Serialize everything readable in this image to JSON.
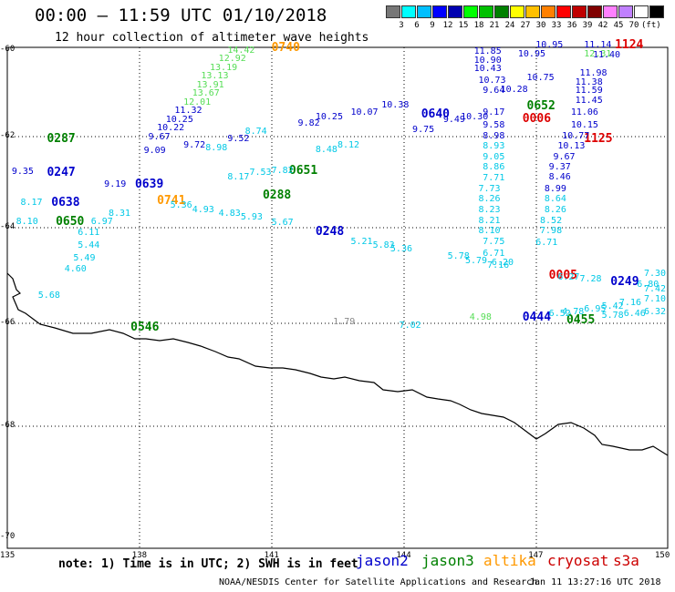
{
  "header": {
    "title": "00:00 – 11:59 UTC 01/10/2018",
    "subtitle": "12 hour collection of altimeter wave heights"
  },
  "colorbar": {
    "colors": [
      "#777777",
      "#00ffff",
      "#00bfff",
      "#0000ff",
      "#0000b0",
      "#00ff00",
      "#00c000",
      "#008000",
      "#ffff00",
      "#ffc000",
      "#ff8000",
      "#ff0000",
      "#c00000",
      "#800000",
      "#ff80ff",
      "#c080ff",
      "#ffffff",
      "#000000"
    ],
    "labels": [
      "3",
      "6",
      "9",
      "12",
      "15",
      "18",
      "21",
      "24",
      "27",
      "30",
      "33",
      "36",
      "39",
      "42",
      "45",
      "70"
    ],
    "unit": "(ft)"
  },
  "axes": {
    "lat_labels": [
      "-60",
      "-62",
      "-64",
      "-66",
      "-68",
      "-70"
    ],
    "lon_labels": [
      "135",
      "138",
      "141",
      "144",
      "147",
      "150"
    ]
  },
  "footer": {
    "note": "note:  1) Time is in UTC;  2) SWH is in feet",
    "credit": "NOAA/NESDIS Center for Satellite Applications and Research",
    "timestamp": "Jan 11 13:27:16 UTC 2018"
  },
  "legend": [
    {
      "name": "jason2",
      "color": "#0000cc"
    },
    {
      "name": "jason3",
      "color": "#008000"
    },
    {
      "name": "altika",
      "color": "#ff9900"
    },
    {
      "name": "cryosat",
      "color": "#cc0000"
    },
    {
      "name": "s3a",
      "color": "#cc0000"
    }
  ],
  "colors": {
    "jason2": "#0000cc",
    "jason3": "#008000",
    "altika": "#ff9900",
    "cryosat": "#dd0000",
    "cyan": "#00c8e6",
    "green": "#55dd55",
    "navy": "#00008b",
    "grey": "#888888"
  },
  "chart_data": {
    "type": "scatter",
    "title": "00:00 – 11:59 UTC 01/10/2018",
    "xlim": [
      135,
      150
    ],
    "ylim": [
      -70,
      -59.5
    ],
    "time_labels": [
      {
        "text": "0740",
        "lon": 141.0,
        "lat": -59.95,
        "color": "altika"
      },
      {
        "text": "1124",
        "lon": 148.8,
        "lat": -59.9,
        "color": "cryosat"
      },
      {
        "text": "0006",
        "lon": 146.7,
        "lat": -61.6,
        "color": "cryosat"
      },
      {
        "text": "0652",
        "lon": 146.8,
        "lat": -61.3,
        "color": "jason3"
      },
      {
        "text": "0640",
        "lon": 144.4,
        "lat": -61.5,
        "color": "jason2"
      },
      {
        "text": "1125",
        "lon": 148.1,
        "lat": -62.05,
        "color": "cryosat"
      },
      {
        "text": "0287",
        "lon": 135.9,
        "lat": -62.05,
        "color": "jason3"
      },
      {
        "text": "0247",
        "lon": 135.9,
        "lat": -62.8,
        "color": "jason2"
      },
      {
        "text": "0651",
        "lon": 141.4,
        "lat": -62.75,
        "color": "jason3"
      },
      {
        "text": "0639",
        "lon": 137.9,
        "lat": -63.05,
        "color": "jason2"
      },
      {
        "text": "0638",
        "lon": 136.0,
        "lat": -63.45,
        "color": "jason2"
      },
      {
        "text": "0741",
        "lon": 138.4,
        "lat": -63.42,
        "color": "altika"
      },
      {
        "text": "0288",
        "lon": 140.8,
        "lat": -63.3,
        "color": "jason3"
      },
      {
        "text": "0650",
        "lon": 136.1,
        "lat": -63.88,
        "color": "jason3"
      },
      {
        "text": "0248",
        "lon": 142.0,
        "lat": -64.1,
        "color": "jason2"
      },
      {
        "text": "0005",
        "lon": 147.3,
        "lat": -65.0,
        "color": "cryosat"
      },
      {
        "text": "0249",
        "lon": 148.7,
        "lat": -65.15,
        "color": "jason2"
      },
      {
        "text": "0444",
        "lon": 146.7,
        "lat": -65.88,
        "color": "jason2"
      },
      {
        "text": "0455",
        "lon": 147.7,
        "lat": -65.95,
        "color": "jason3"
      },
      {
        "text": "0546",
        "lon": 137.8,
        "lat": -66.08,
        "color": "jason3"
      }
    ],
    "swh_labels": [
      {
        "text": "14.42",
        "lon": 140.0,
        "lat": -60.02,
        "color": "green"
      },
      {
        "text": "12.92",
        "lon": 139.8,
        "lat": -60.22,
        "color": "green"
      },
      {
        "text": "13.19",
        "lon": 139.6,
        "lat": -60.42,
        "color": "green"
      },
      {
        "text": "13.13",
        "lon": 139.4,
        "lat": -60.62,
        "color": "green"
      },
      {
        "text": "13.91",
        "lon": 139.3,
        "lat": -60.82,
        "color": "green"
      },
      {
        "text": "13.67",
        "lon": 139.2,
        "lat": -61.02,
        "color": "green"
      },
      {
        "text": "12.01",
        "lon": 139.0,
        "lat": -61.22,
        "color": "green"
      },
      {
        "text": "11.32",
        "lon": 138.8,
        "lat": -61.42,
        "color": "jason2"
      },
      {
        "text": "10.25",
        "lon": 138.6,
        "lat": -61.62,
        "color": "jason2"
      },
      {
        "text": "10.22",
        "lon": 138.4,
        "lat": -61.82,
        "color": "jason2"
      },
      {
        "text": "9.67",
        "lon": 138.2,
        "lat": -62.02,
        "color": "jason2"
      },
      {
        "text": "9.09",
        "lon": 138.1,
        "lat": -62.32,
        "color": "jason2"
      },
      {
        "text": "9.72",
        "lon": 139.0,
        "lat": -62.2,
        "color": "jason2"
      },
      {
        "text": "9.52",
        "lon": 140.0,
        "lat": -62.05,
        "color": "jason2"
      },
      {
        "text": "8.74",
        "lon": 140.4,
        "lat": -61.9,
        "color": "cyan"
      },
      {
        "text": "9.82",
        "lon": 141.6,
        "lat": -61.7,
        "color": "jason2"
      },
      {
        "text": "10.25",
        "lon": 142.0,
        "lat": -61.55,
        "color": "jason2"
      },
      {
        "text": "10.07",
        "lon": 142.8,
        "lat": -61.45,
        "color": "jason2"
      },
      {
        "text": "10.38",
        "lon": 143.5,
        "lat": -61.28,
        "color": "jason2"
      },
      {
        "text": "9.75",
        "lon": 144.2,
        "lat": -61.85,
        "color": "jason2"
      },
      {
        "text": "9.49",
        "lon": 144.9,
        "lat": -61.62,
        "color": "jason2"
      },
      {
        "text": "10.30",
        "lon": 145.3,
        "lat": -61.55,
        "color": "jason2"
      },
      {
        "text": "11.85",
        "lon": 145.6,
        "lat": -60.05,
        "color": "jason2"
      },
      {
        "text": "10.90",
        "lon": 145.6,
        "lat": -60.25,
        "color": "jason2"
      },
      {
        "text": "10.43",
        "lon": 145.6,
        "lat": -60.45,
        "color": "jason2"
      },
      {
        "text": "10.73",
        "lon": 145.7,
        "lat": -60.72,
        "color": "jason2"
      },
      {
        "text": "9.64",
        "lon": 145.8,
        "lat": -60.95,
        "color": "jason2"
      },
      {
        "text": "9.17",
        "lon": 145.8,
        "lat": -61.45,
        "color": "jason2"
      },
      {
        "text": "9.58",
        "lon": 145.8,
        "lat": -61.75,
        "color": "jason2"
      },
      {
        "text": "8.98",
        "lon": 145.8,
        "lat": -62.0,
        "color": "jason2"
      },
      {
        "text": "8.93",
        "lon": 145.8,
        "lat": -62.22,
        "color": "cyan"
      },
      {
        "text": "9.05",
        "lon": 145.8,
        "lat": -62.45,
        "color": "cyan"
      },
      {
        "text": "8.86",
        "lon": 145.8,
        "lat": -62.68,
        "color": "cyan"
      },
      {
        "text": "7.71",
        "lon": 145.8,
        "lat": -62.92,
        "color": "cyan"
      },
      {
        "text": "7.73",
        "lon": 145.7,
        "lat": -63.15,
        "color": "cyan"
      },
      {
        "text": "8.26",
        "lon": 145.7,
        "lat": -63.38,
        "color": "cyan"
      },
      {
        "text": "8.23",
        "lon": 145.7,
        "lat": -63.62,
        "color": "cyan"
      },
      {
        "text": "8.21",
        "lon": 145.7,
        "lat": -63.85,
        "color": "cyan"
      },
      {
        "text": "8.10",
        "lon": 145.7,
        "lat": -64.08,
        "color": "cyan"
      },
      {
        "text": "7.75",
        "lon": 145.8,
        "lat": -64.3,
        "color": "cyan"
      },
      {
        "text": "6.71",
        "lon": 145.8,
        "lat": -64.55,
        "color": "cyan"
      },
      {
        "text": "7.16",
        "lon": 145.9,
        "lat": -64.8,
        "color": "cyan"
      },
      {
        "text": "10.95",
        "lon": 147.0,
        "lat": -59.9,
        "color": "jason2"
      },
      {
        "text": "10.95",
        "lon": 146.6,
        "lat": -60.1,
        "color": "jason2"
      },
      {
        "text": "10.75",
        "lon": 146.8,
        "lat": -60.65,
        "color": "jason2"
      },
      {
        "text": "10.28",
        "lon": 146.2,
        "lat": -60.92,
        "color": "jason2"
      },
      {
        "text": "11.14",
        "lon": 148.1,
        "lat": -59.9,
        "color": "jason2"
      },
      {
        "text": "12.31",
        "lon": 148.1,
        "lat": -60.1,
        "color": "green"
      },
      {
        "text": "11.40",
        "lon": 148.3,
        "lat": -60.12,
        "color": "jason2"
      },
      {
        "text": "11.98",
        "lon": 148.0,
        "lat": -60.55,
        "color": "jason2"
      },
      {
        "text": "11.59",
        "lon": 147.9,
        "lat": -60.95,
        "color": "jason2"
      },
      {
        "text": "11.45",
        "lon": 147.9,
        "lat": -61.18,
        "color": "jason2"
      },
      {
        "text": "11.38",
        "lon": 147.9,
        "lat": -60.75,
        "color": "jason2"
      },
      {
        "text": "11.06",
        "lon": 147.8,
        "lat": -61.45,
        "color": "jason2"
      },
      {
        "text": "10.15",
        "lon": 147.8,
        "lat": -61.75,
        "color": "jason2"
      },
      {
        "text": "10.77",
        "lon": 147.6,
        "lat": -62.0,
        "color": "jason2"
      },
      {
        "text": "10.13",
        "lon": 147.5,
        "lat": -62.22,
        "color": "jason2"
      },
      {
        "text": "9.67",
        "lon": 147.4,
        "lat": -62.45,
        "color": "jason2"
      },
      {
        "text": "9.37",
        "lon": 147.3,
        "lat": -62.68,
        "color": "jason2"
      },
      {
        "text": "8.46",
        "lon": 147.3,
        "lat": -62.9,
        "color": "jason2"
      },
      {
        "text": "8.99",
        "lon": 147.2,
        "lat": -63.15,
        "color": "jason2"
      },
      {
        "text": "8.64",
        "lon": 147.2,
        "lat": -63.38,
        "color": "cyan"
      },
      {
        "text": "8.26",
        "lon": 147.2,
        "lat": -63.62,
        "color": "cyan"
      },
      {
        "text": "8.52",
        "lon": 147.1,
        "lat": -63.85,
        "color": "cyan"
      },
      {
        "text": "7.98",
        "lon": 147.1,
        "lat": -64.08,
        "color": "cyan"
      },
      {
        "text": "6.71",
        "lon": 147.0,
        "lat": -64.32,
        "color": "cyan"
      },
      {
        "text": "9.35",
        "lon": 135.1,
        "lat": -62.78,
        "color": "jason2"
      },
      {
        "text": "8.17",
        "lon": 135.3,
        "lat": -63.45,
        "color": "cyan"
      },
      {
        "text": "8.10",
        "lon": 135.2,
        "lat": -63.88,
        "color": "cyan"
      },
      {
        "text": "6.97",
        "lon": 136.9,
        "lat": -63.88,
        "color": "cyan"
      },
      {
        "text": "6.11",
        "lon": 136.6,
        "lat": -64.12,
        "color": "cyan"
      },
      {
        "text": "5.44",
        "lon": 136.6,
        "lat": -64.38,
        "color": "cyan"
      },
      {
        "text": "5.49",
        "lon": 136.5,
        "lat": -64.65,
        "color": "cyan"
      },
      {
        "text": "4.60",
        "lon": 136.3,
        "lat": -64.88,
        "color": "cyan"
      },
      {
        "text": "5.68",
        "lon": 135.7,
        "lat": -65.42,
        "color": "cyan"
      },
      {
        "text": "8.31",
        "lon": 137.3,
        "lat": -63.7,
        "color": "cyan"
      },
      {
        "text": "9.19",
        "lon": 137.2,
        "lat": -63.05,
        "color": "jason2"
      },
      {
        "text": "5.36",
        "lon": 138.7,
        "lat": -63.52,
        "color": "cyan"
      },
      {
        "text": "4.93",
        "lon": 139.2,
        "lat": -63.62,
        "color": "cyan"
      },
      {
        "text": "4.83",
        "lon": 139.8,
        "lat": -63.7,
        "color": "cyan"
      },
      {
        "text": "5.93",
        "lon": 140.3,
        "lat": -63.78,
        "color": "cyan"
      },
      {
        "text": "5.67",
        "lon": 141.0,
        "lat": -63.9,
        "color": "cyan"
      },
      {
        "text": "8.17",
        "lon": 140.0,
        "lat": -62.9,
        "color": "cyan"
      },
      {
        "text": "7.53",
        "lon": 140.5,
        "lat": -62.8,
        "color": "cyan"
      },
      {
        "text": "7.82",
        "lon": 141.0,
        "lat": -62.75,
        "color": "cyan"
      },
      {
        "text": "8.12",
        "lon": 142.5,
        "lat": -62.2,
        "color": "cyan"
      },
      {
        "text": "8.48",
        "lon": 142.0,
        "lat": -62.3,
        "color": "cyan"
      },
      {
        "text": "8.98",
        "lon": 139.5,
        "lat": -62.25,
        "color": "cyan"
      },
      {
        "text": "5.21",
        "lon": 142.8,
        "lat": -64.3,
        "color": "cyan"
      },
      {
        "text": "5.83",
        "lon": 143.3,
        "lat": -64.38,
        "color": "cyan"
      },
      {
        "text": "5.36",
        "lon": 143.7,
        "lat": -64.45,
        "color": "cyan"
      },
      {
        "text": "5.78",
        "lon": 145.0,
        "lat": -64.6,
        "color": "cyan"
      },
      {
        "text": "5.79",
        "lon": 145.4,
        "lat": -64.7,
        "color": "cyan"
      },
      {
        "text": "6.20",
        "lon": 146.0,
        "lat": -64.75,
        "color": "cyan"
      },
      {
        "text": "1.79",
        "lon": 142.4,
        "lat": -65.98,
        "color": "grey"
      },
      {
        "text": "7.02",
        "lon": 143.9,
        "lat": -66.05,
        "color": "cyan"
      },
      {
        "text": "4.98",
        "lon": 145.5,
        "lat": -65.88,
        "color": "green"
      },
      {
        "text": "6.52",
        "lon": 147.3,
        "lat": -65.8,
        "color": "cyan"
      },
      {
        "text": "4.78",
        "lon": 147.6,
        "lat": -65.78,
        "color": "cyan"
      },
      {
        "text": "6.95",
        "lon": 148.1,
        "lat": -65.72,
        "color": "cyan"
      },
      {
        "text": "5.42",
        "lon": 148.5,
        "lat": -65.65,
        "color": "cyan"
      },
      {
        "text": "7.16",
        "lon": 148.9,
        "lat": -65.58,
        "color": "cyan"
      },
      {
        "text": "7.10",
        "lon": 149.5,
        "lat": -65.5,
        "color": "cyan"
      },
      {
        "text": "6.32",
        "lon": 149.6,
        "lat": -65.78,
        "color": "cyan"
      },
      {
        "text": "5.78",
        "lon": 148.5,
        "lat": -65.85,
        "color": "cyan"
      },
      {
        "text": "6.46",
        "lon": 149.0,
        "lat": -65.8,
        "color": "cyan"
      },
      {
        "text": "7.28",
        "lon": 148.0,
        "lat": -65.08,
        "color": "cyan"
      },
      {
        "text": "6.80",
        "lon": 149.3,
        "lat": -65.2,
        "color": "cyan"
      },
      {
        "text": "7.42",
        "lon": 149.8,
        "lat": -65.3,
        "color": "cyan"
      },
      {
        "text": "7.30",
        "lon": 149.5,
        "lat": -64.98,
        "color": "cyan"
      },
      {
        "text": "6.27",
        "lon": 147.5,
        "lat": -65.05,
        "color": "cyan"
      }
    ]
  }
}
